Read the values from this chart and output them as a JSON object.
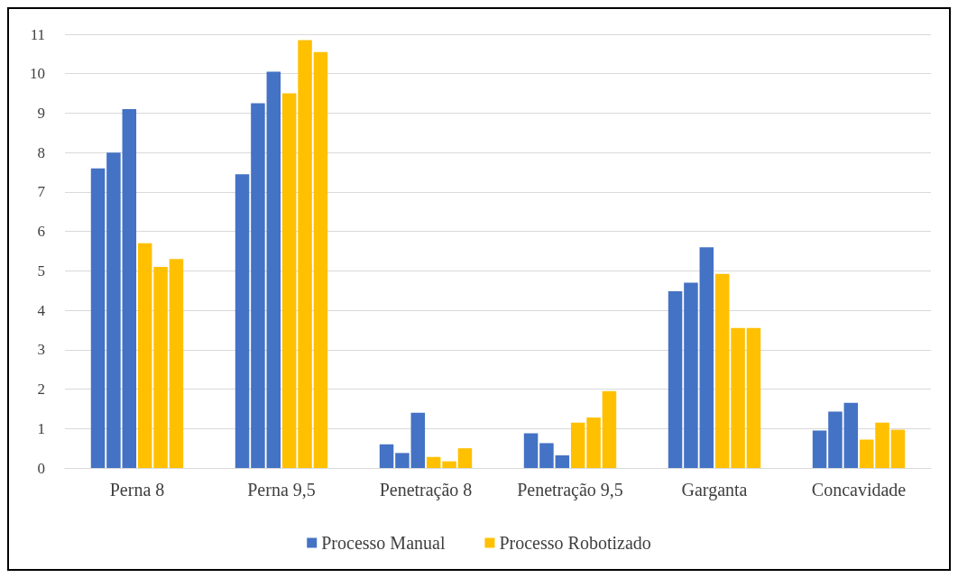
{
  "chart_data": {
    "type": "bar",
    "categories": [
      "Perna 8",
      "Perna 9,5",
      "Penetração 8",
      "Penetração 9,5",
      "Garganta",
      "Concavidade"
    ],
    "series": [
      {
        "name": "Processo Manual",
        "color": "#4472c4",
        "values": [
          7.6,
          7.45,
          0.6,
          0.88,
          4.48,
          0.95
        ]
      },
      {
        "color": "#4472c4",
        "values": [
          8.0,
          9.25,
          0.38,
          0.63,
          4.7,
          1.43
        ]
      },
      {
        "color": "#4472c4",
        "values": [
          9.1,
          10.05,
          1.4,
          0.32,
          5.6,
          1.65
        ]
      },
      {
        "name": "Processo Robotizado",
        "color": "#ffc000",
        "values": [
          5.7,
          9.5,
          0.28,
          1.15,
          4.92,
          0.72
        ]
      },
      {
        "color": "#ffc000",
        "values": [
          5.1,
          10.85,
          0.17,
          1.28,
          3.55,
          1.15
        ]
      },
      {
        "color": "#ffc000",
        "values": [
          5.3,
          10.55,
          0.5,
          1.95,
          3.55,
          0.97
        ]
      }
    ],
    "ylim": [
      0,
      11
    ],
    "yticks": [
      0,
      1,
      2,
      3,
      4,
      5,
      6,
      7,
      8,
      9,
      10,
      11
    ],
    "grid": "y",
    "legend": "bottom"
  }
}
